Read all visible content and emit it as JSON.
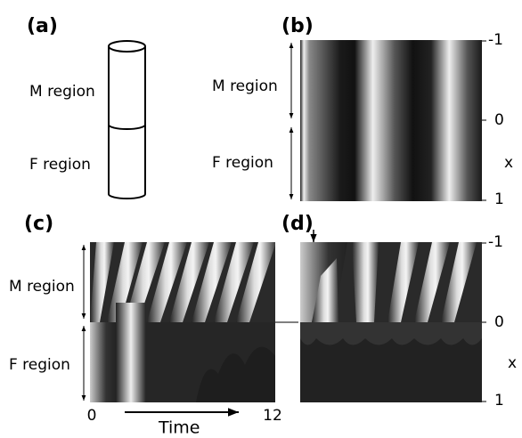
{
  "panels": [
    {
      "label": "(a)",
      "regions": [
        "M region",
        "F region"
      ]
    },
    {
      "label": "(b)",
      "regions": [
        "M region",
        "F region"
      ],
      "axis_ticks": [
        "-1",
        "0",
        "1"
      ],
      "axis_label": "x"
    },
    {
      "label": "(c)",
      "regions": [
        "M region",
        "F region"
      ],
      "time_ticks": [
        "0",
        "12"
      ],
      "time_label": "Time"
    },
    {
      "label": "(d)",
      "axis_ticks": [
        "-1",
        "0",
        "1"
      ],
      "axis_label": "x"
    }
  ]
}
